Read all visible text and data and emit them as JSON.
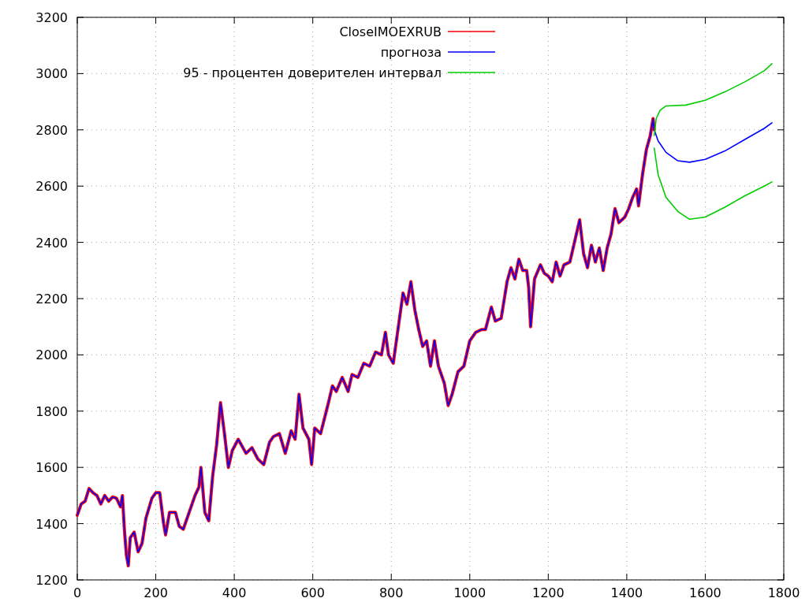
{
  "chart_data": {
    "type": "line",
    "xlim": [
      0,
      1800
    ],
    "ylim": [
      1200,
      3200
    ],
    "xticks": [
      0,
      200,
      400,
      600,
      800,
      1000,
      1200,
      1400,
      1600,
      1800
    ],
    "yticks": [
      1200,
      1400,
      1600,
      1800,
      2000,
      2200,
      2400,
      2600,
      2800,
      3000,
      3200
    ],
    "grid": true,
    "legend": "top",
    "line_style": "solid",
    "marker": "none",
    "series": [
      {
        "name": "CloseIMOEXRUB",
        "color": "#ff0000",
        "x": [
          0,
          10,
          20,
          30,
          40,
          50,
          60,
          70,
          80,
          90,
          100,
          110,
          115,
          120,
          125,
          130,
          135,
          145,
          155,
          165,
          175,
          190,
          200,
          210,
          220,
          225,
          235,
          250,
          260,
          270,
          285,
          300,
          310,
          315,
          325,
          335,
          345,
          355,
          365,
          375,
          385,
          395,
          410,
          430,
          445,
          460,
          475,
          490,
          500,
          515,
          530,
          545,
          555,
          565,
          575,
          590,
          597,
          605,
          620,
          640,
          650,
          660,
          675,
          690,
          700,
          715,
          730,
          745,
          760,
          775,
          785,
          793,
          805,
          815,
          830,
          840,
          850,
          860,
          870,
          880,
          890,
          900,
          910,
          920,
          935,
          945,
          955,
          970,
          985,
          1000,
          1015,
          1030,
          1040,
          1055,
          1065,
          1080,
          1095,
          1105,
          1115,
          1125,
          1135,
          1145,
          1150,
          1155,
          1165,
          1180,
          1190,
          1200,
          1210,
          1220,
          1230,
          1240,
          1255,
          1270,
          1280,
          1290,
          1300,
          1310,
          1320,
          1330,
          1340,
          1350,
          1360,
          1370,
          1380,
          1395,
          1405,
          1415,
          1425,
          1430,
          1440,
          1450,
          1460,
          1467,
          1470
        ],
        "values": [
          1430,
          1470,
          1480,
          1525,
          1510,
          1500,
          1470,
          1500,
          1480,
          1495,
          1490,
          1460,
          1500,
          1380,
          1290,
          1250,
          1350,
          1370,
          1300,
          1330,
          1420,
          1490,
          1510,
          1510,
          1400,
          1360,
          1440,
          1440,
          1390,
          1380,
          1440,
          1500,
          1530,
          1600,
          1440,
          1410,
          1570,
          1680,
          1830,
          1720,
          1600,
          1660,
          1700,
          1650,
          1670,
          1630,
          1610,
          1690,
          1710,
          1720,
          1650,
          1730,
          1700,
          1860,
          1740,
          1700,
          1610,
          1740,
          1720,
          1830,
          1890,
          1870,
          1920,
          1870,
          1930,
          1920,
          1970,
          1960,
          2010,
          2000,
          2080,
          2000,
          1970,
          2070,
          2220,
          2180,
          2260,
          2160,
          2090,
          2030,
          2050,
          1960,
          2050,
          1960,
          1900,
          1820,
          1860,
          1940,
          1960,
          2050,
          2080,
          2090,
          2090,
          2170,
          2120,
          2130,
          2260,
          2310,
          2270,
          2340,
          2300,
          2300,
          2240,
          2100,
          2270,
          2320,
          2290,
          2280,
          2260,
          2330,
          2280,
          2320,
          2330,
          2420,
          2480,
          2360,
          2310,
          2390,
          2330,
          2380,
          2300,
          2380,
          2430,
          2520,
          2470,
          2490,
          2520,
          2560,
          2590,
          2530,
          2640,
          2730,
          2780,
          2840,
          2800
        ]
      },
      {
        "name": "прогноза",
        "color": "#0000ff",
        "x": [
          0,
          10,
          20,
          30,
          40,
          50,
          60,
          70,
          80,
          90,
          100,
          110,
          115,
          120,
          125,
          130,
          135,
          145,
          155,
          165,
          175,
          190,
          200,
          210,
          220,
          225,
          235,
          250,
          260,
          270,
          285,
          300,
          310,
          315,
          325,
          335,
          345,
          355,
          365,
          375,
          385,
          395,
          410,
          430,
          445,
          460,
          475,
          490,
          500,
          515,
          530,
          545,
          555,
          565,
          575,
          590,
          597,
          605,
          620,
          640,
          650,
          660,
          675,
          690,
          700,
          715,
          730,
          745,
          760,
          775,
          785,
          793,
          805,
          815,
          830,
          840,
          850,
          860,
          870,
          880,
          890,
          900,
          910,
          920,
          935,
          945,
          955,
          970,
          985,
          1000,
          1015,
          1030,
          1040,
          1055,
          1065,
          1080,
          1095,
          1105,
          1115,
          1125,
          1135,
          1145,
          1150,
          1155,
          1165,
          1180,
          1190,
          1200,
          1210,
          1220,
          1230,
          1240,
          1255,
          1270,
          1280,
          1290,
          1300,
          1310,
          1320,
          1330,
          1340,
          1350,
          1360,
          1370,
          1380,
          1395,
          1405,
          1415,
          1425,
          1430,
          1440,
          1450,
          1460,
          1467,
          1470,
          1480,
          1500,
          1530,
          1560,
          1600,
          1650,
          1700,
          1750,
          1770
        ],
        "values": [
          1430,
          1470,
          1480,
          1525,
          1510,
          1500,
          1470,
          1500,
          1480,
          1495,
          1490,
          1460,
          1500,
          1380,
          1290,
          1250,
          1350,
          1370,
          1300,
          1330,
          1420,
          1490,
          1510,
          1510,
          1400,
          1360,
          1440,
          1440,
          1390,
          1380,
          1440,
          1500,
          1530,
          1600,
          1440,
          1410,
          1570,
          1680,
          1830,
          1720,
          1600,
          1660,
          1700,
          1650,
          1670,
          1630,
          1610,
          1690,
          1710,
          1720,
          1650,
          1730,
          1700,
          1860,
          1740,
          1700,
          1610,
          1740,
          1720,
          1830,
          1890,
          1870,
          1920,
          1870,
          1930,
          1920,
          1970,
          1960,
          2010,
          2000,
          2080,
          2000,
          1970,
          2070,
          2220,
          2180,
          2260,
          2160,
          2090,
          2030,
          2050,
          1960,
          2050,
          1960,
          1900,
          1820,
          1860,
          1940,
          1960,
          2050,
          2080,
          2090,
          2090,
          2170,
          2120,
          2130,
          2260,
          2310,
          2270,
          2340,
          2300,
          2300,
          2240,
          2100,
          2270,
          2320,
          2290,
          2280,
          2260,
          2330,
          2280,
          2320,
          2330,
          2420,
          2480,
          2360,
          2310,
          2390,
          2330,
          2380,
          2300,
          2380,
          2430,
          2520,
          2470,
          2490,
          2520,
          2560,
          2590,
          2530,
          2640,
          2730,
          2780,
          2840,
          2800,
          2760,
          2720,
          2690,
          2685,
          2695,
          2725,
          2765,
          2805,
          2825
        ]
      },
      {
        "name": "95 - процентен доверителен интервал",
        "color": "#00cc00",
        "x": [
          1470,
          1475,
          1485,
          1500,
          1550,
          1600,
          1650,
          1700,
          1750,
          1770
        ],
        "values": [
          2780,
          2840,
          2870,
          2885,
          2888,
          2905,
          2935,
          2970,
          3010,
          3035
        ]
      },
      {
        "color": "#00cc00",
        "x": [
          1470,
          1480,
          1500,
          1530,
          1560,
          1600,
          1650,
          1700,
          1750,
          1770
        ],
        "values": [
          2735,
          2640,
          2560,
          2510,
          2482,
          2490,
          2525,
          2565,
          2600,
          2615
        ]
      }
    ]
  }
}
